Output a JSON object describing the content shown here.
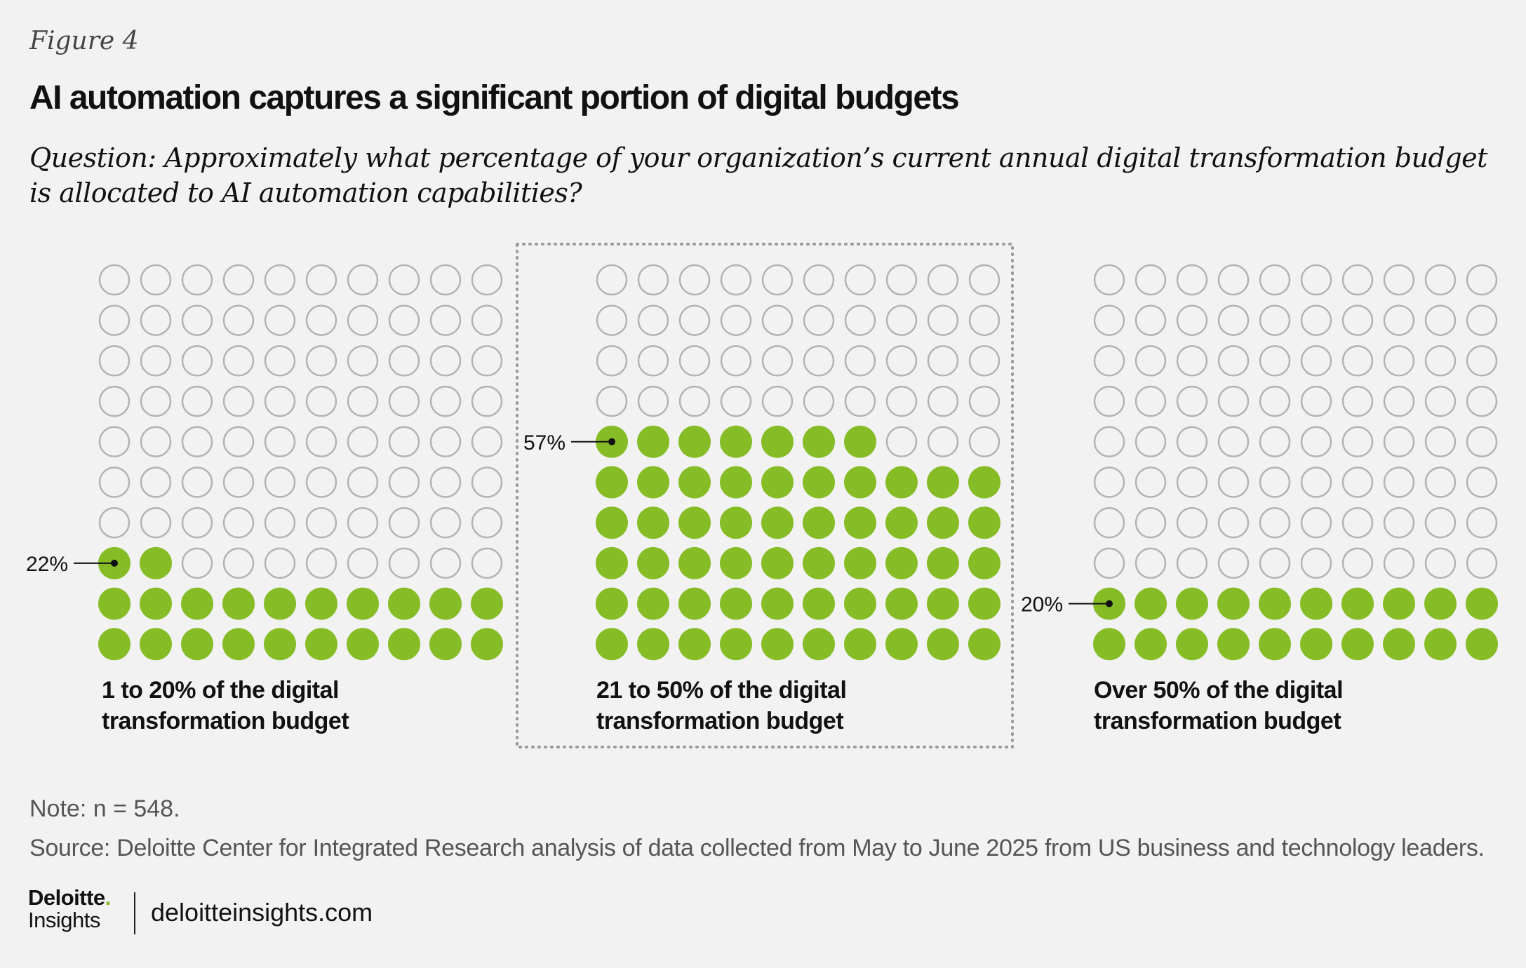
{
  "figure_label": "Figure 4",
  "title": "AI automation captures a significant portion of digital budgets",
  "question": "Question: Approximately what percentage of your organization’s current annual digital transformation budget is allocated to AI automation capabilities?",
  "chart_data": {
    "type": "waffle",
    "grid": "10x10",
    "filled_color": "#86bc25",
    "empty_color": "#b3b3b3",
    "highlight": "21 to 50% of the digital transformation budget",
    "series": [
      {
        "label": "1 to 20% of the digital transformation budget",
        "line1": "1 to 20% of the digital",
        "line2": "transformation budget",
        "value": 22,
        "value_label": "22%"
      },
      {
        "label": "21 to 50% of the digital transformation budget",
        "line1": "21 to 50% of the digital",
        "line2": "transformation budget",
        "value": 57,
        "value_label": "57%"
      },
      {
        "label": "Over 50% of the digital transformation budget",
        "line1": "Over 50% of the digital",
        "line2": "transformation budget",
        "value": 20,
        "value_label": "20%"
      }
    ]
  },
  "note": "Note: n = 548.",
  "source": "Source: Deloitte Center for Integrated Research analysis of data collected from May to June 2025 from US business and technology leaders.",
  "brand": {
    "name": "Deloitte",
    "dot": ".",
    "sub": "Insights",
    "url": "deloitteinsights.com"
  }
}
